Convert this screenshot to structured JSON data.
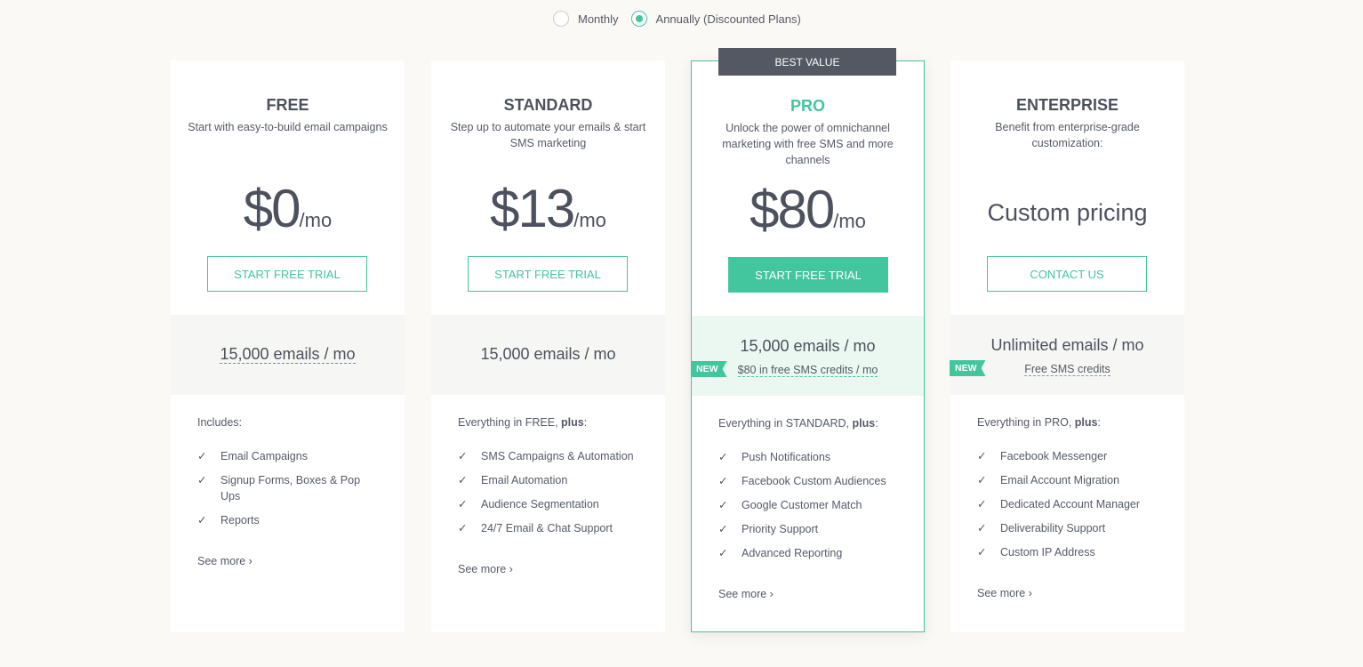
{
  "billing": {
    "monthly": "Monthly",
    "annually": "Annually (Discounted Plans)",
    "selected": "annually"
  },
  "plans": [
    {
      "name": "FREE",
      "desc": "Start with easy-to-build email campaigns",
      "price": "$0",
      "per": "/mo",
      "button": "START FREE TRIAL",
      "emails": "15,000 emails / mo",
      "intro": "Includes:",
      "intro_bold": "",
      "features": [
        "Email Campaigns",
        "Signup Forms, Boxes & Pop Ups",
        "Reports"
      ],
      "see_more": "See more ›"
    },
    {
      "name": "STANDARD",
      "desc": "Step up to automate your emails & start SMS marketing",
      "price": "$13",
      "per": "/mo",
      "button": "START FREE TRIAL",
      "emails": "15,000 emails / mo",
      "intro": "Everything in FREE, ",
      "intro_bold": "plus",
      "intro_end": ":",
      "features": [
        "SMS Campaigns & Automation",
        "Email Automation",
        "Audience Segmentation",
        "24/7 Email & Chat Support"
      ],
      "see_more": "See more ›"
    },
    {
      "name": "PRO",
      "badge": "BEST VALUE",
      "desc": "Unlock the power of omnichannel marketing with free SMS and more channels",
      "price": "$80",
      "per": "/mo",
      "button": "START FREE TRIAL",
      "emails": "15,000 emails / mo",
      "new_label": "NEW",
      "extra": "$80 in free SMS credits / mo",
      "intro": "Everything in STANDARD, ",
      "intro_bold": "plus",
      "intro_end": ":",
      "features": [
        "Push Notifications",
        "Facebook Custom Audiences",
        "Google Customer Match",
        "Priority Support",
        "Advanced Reporting"
      ],
      "see_more": "See more ›"
    },
    {
      "name": "ENTERPRISE",
      "desc": "Benefit from enterprise-grade customization:",
      "price_text": "Custom pricing",
      "button": "CONTACT US",
      "emails": "Unlimited emails / mo",
      "new_label": "NEW",
      "extra": "Free SMS credits",
      "intro": "Everything in PRO, ",
      "intro_bold": "plus",
      "intro_end": ":",
      "features": [
        "Facebook Messenger",
        "Email Account Migration",
        "Dedicated Account Manager",
        "Deliverability Support",
        "Custom IP Address"
      ],
      "see_more": "See more ›"
    }
  ],
  "colors": {
    "accent": "#43c59e",
    "badge": "#535863",
    "text": "#4c515d"
  }
}
